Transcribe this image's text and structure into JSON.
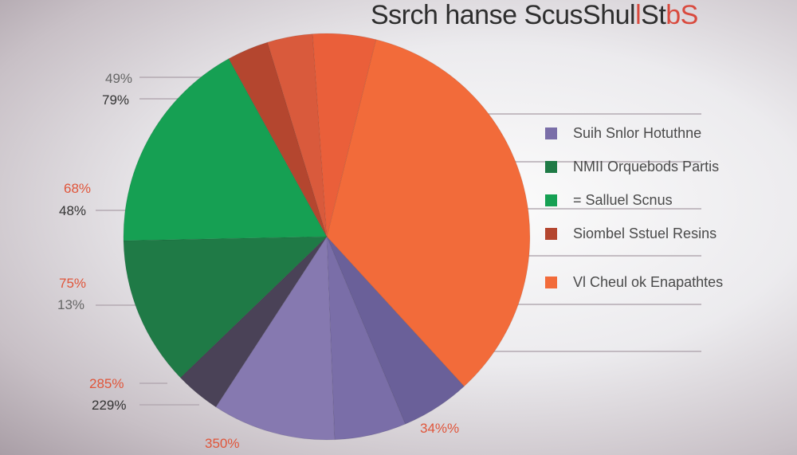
{
  "title": {
    "main": "Ssrch  hanse ScusShul",
    "accent_mark": "l",
    "tail": "St",
    "tail_accent": "bS"
  },
  "chart_data": {
    "type": "pie",
    "title": "Ssrch  hanse ScusShul l StbS",
    "slices": [
      {
        "name": "orange",
        "value": 34.3,
        "color": "#f26b3a"
      },
      {
        "name": "dark-purple",
        "value": 5.5,
        "color": "#6a6099"
      },
      {
        "name": "mid-purple",
        "value": 5.7,
        "color": "#7a6ea8"
      },
      {
        "name": "light-purple",
        "value": 9.8,
        "color": "#8679b0"
      },
      {
        "name": "dark-slate",
        "value": 3.6,
        "color": "#4a4257"
      },
      {
        "name": "dark-green",
        "value": 11.9,
        "color": "#1f7a46"
      },
      {
        "name": "green",
        "value": 17.3,
        "color": "#16a053"
      },
      {
        "name": "dark-red",
        "value": 3.3,
        "color": "#b4462f"
      },
      {
        "name": "red-orange",
        "value": 3.6,
        "color": "#d95a3c"
      },
      {
        "name": "orange-2",
        "value": 5.0,
        "color": "#ea5f3a"
      }
    ],
    "labels": [
      {
        "text": "49%",
        "color": "#666666"
      },
      {
        "text": "79%",
        "color": "#333333"
      },
      {
        "text": "68%",
        "color": "#e0553a"
      },
      {
        "text": "48%",
        "color": "#333333"
      },
      {
        "text": "75%",
        "color": "#e0553a"
      },
      {
        "text": "13%",
        "color": "#666666"
      },
      {
        "text": "285%",
        "color": "#e0553a"
      },
      {
        "text": "229%",
        "color": "#333333"
      },
      {
        "text": "350%",
        "color": "#e0553a"
      },
      {
        "text": "34%%",
        "color": "#e0553a"
      }
    ],
    "legend": [
      {
        "label": "Suih Snlor Hotuthne",
        "color": "#7a6ea8"
      },
      {
        "label": "NMII Orquebods Partis",
        "color": "#1f7a46"
      },
      {
        "label": "= Salluel Scnus",
        "color": "#16a053"
      },
      {
        "label": "Siombel Sstuel Resins",
        "color": "#b4462f"
      },
      {
        "label": "Vl Cheul ok  Enapathtes",
        "color": "#f26b3a"
      }
    ],
    "legend_position": "right"
  }
}
